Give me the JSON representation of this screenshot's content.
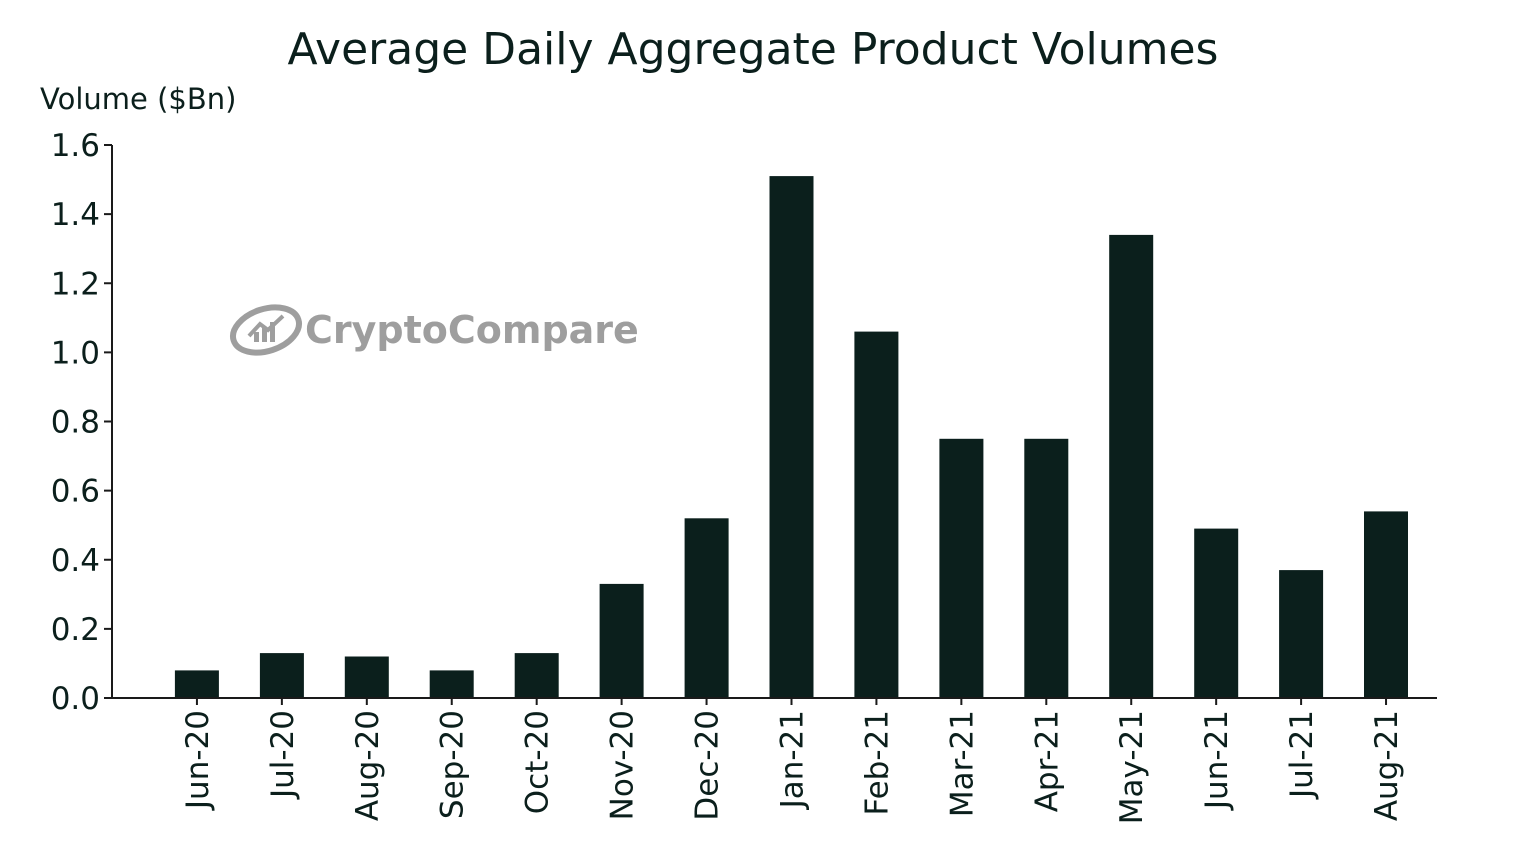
{
  "chart_data": {
    "type": "bar",
    "title": "Average Daily Aggregate Product Volumes",
    "xlabel": "",
    "ylabel": "Volume ($Bn)",
    "ylim": [
      0,
      1.6
    ],
    "yticks": [
      "0.0",
      "0.2",
      "0.4",
      "0.6",
      "0.8",
      "1.0",
      "1.2",
      "1.4",
      "1.6"
    ],
    "categories": [
      "Jun-20",
      "Jul-20",
      "Aug-20",
      "Sep-20",
      "Oct-20",
      "Nov-20",
      "Dec-20",
      "Jan-21",
      "Feb-21",
      "Mar-21",
      "Apr-21",
      "May-21",
      "Jun-21",
      "Jul-21",
      "Aug-21"
    ],
    "values": [
      0.08,
      0.13,
      0.12,
      0.08,
      0.13,
      0.33,
      0.52,
      1.51,
      1.06,
      0.75,
      0.75,
      1.34,
      0.49,
      0.37,
      0.54
    ],
    "grid": false,
    "legend": "none",
    "bar_color": "#0b1f1c",
    "axis_color": "#1a1a1a"
  },
  "watermark": {
    "text": "CryptoCompare",
    "icon": "cryptocompare-logo-icon",
    "color": "#9e9e9e"
  }
}
